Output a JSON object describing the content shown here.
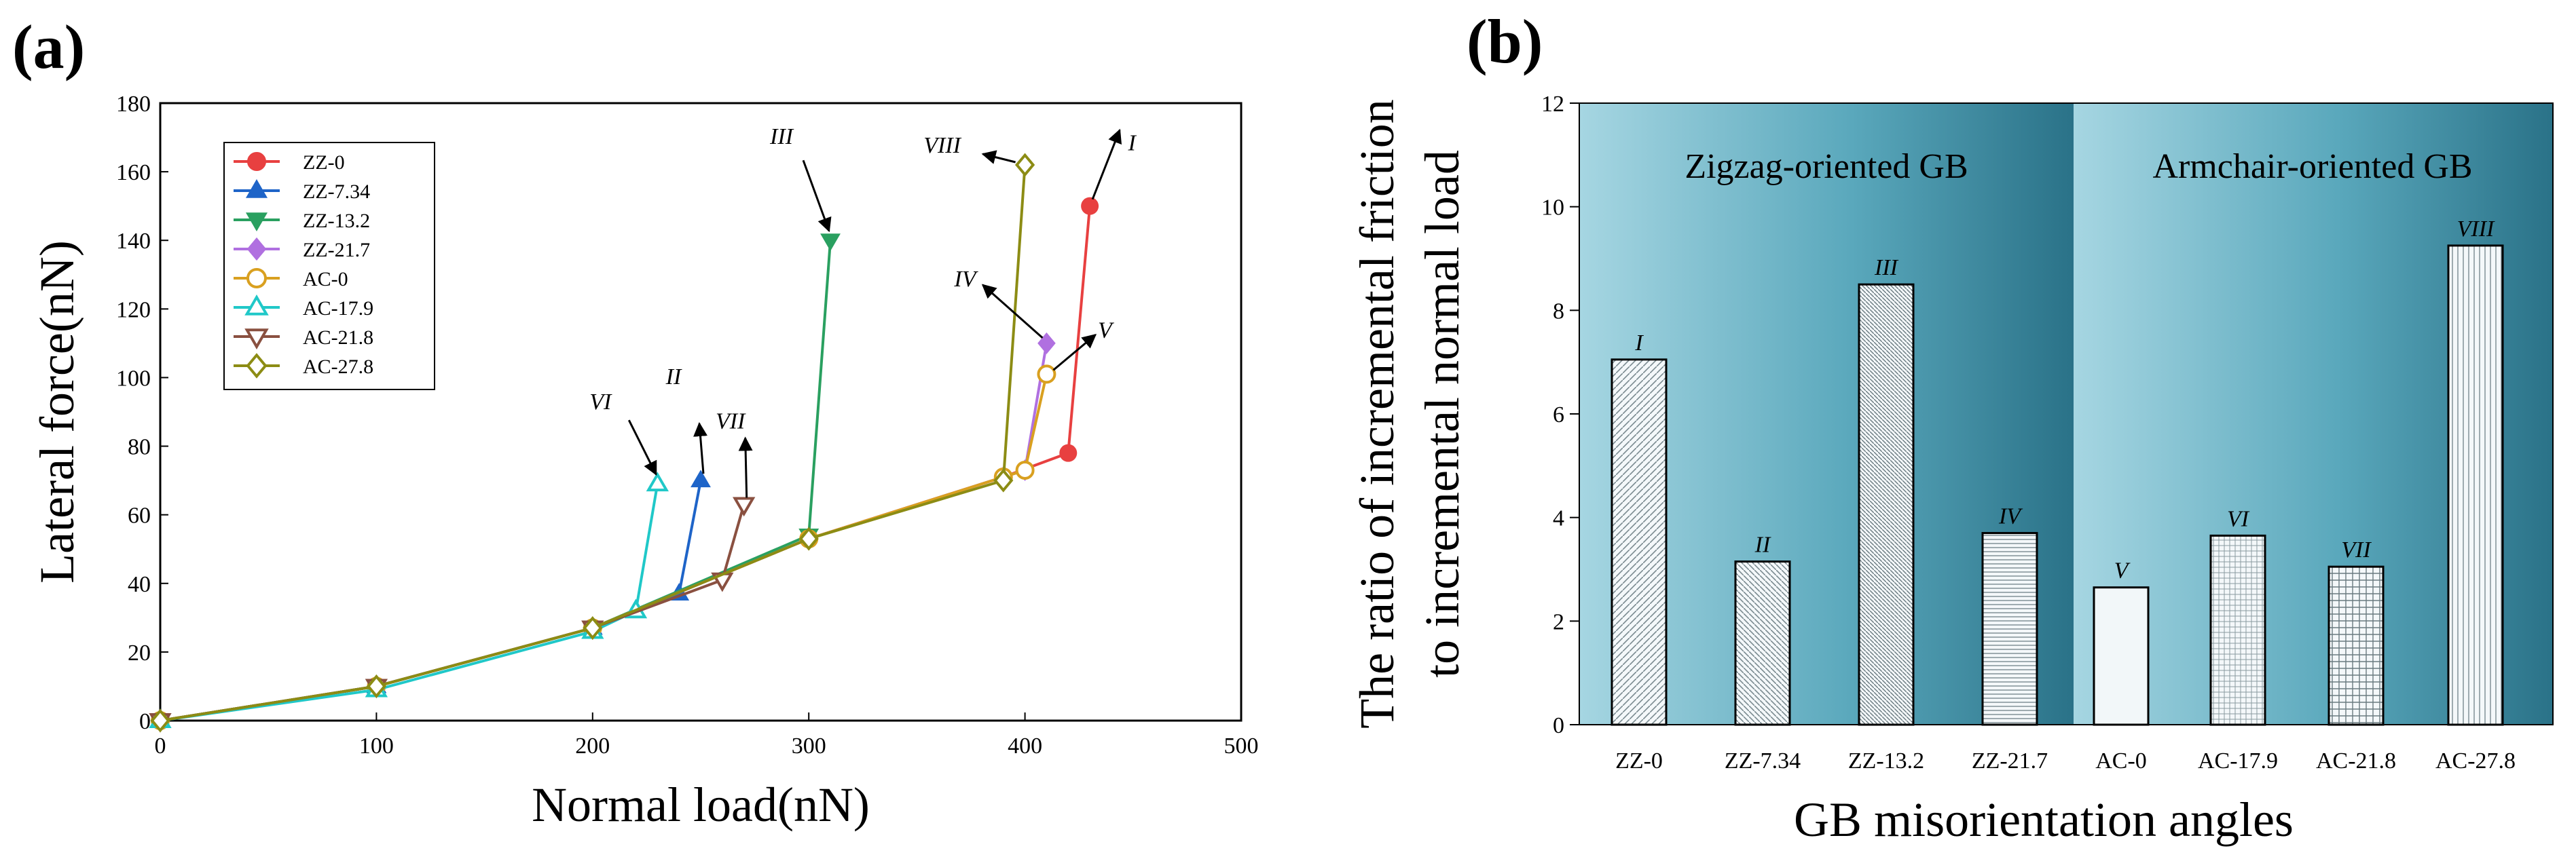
{
  "panels": {
    "a": {
      "label": "(a)"
    },
    "b": {
      "label": "(b)"
    }
  },
  "colors": {
    "ZZ-0": "#e84040",
    "ZZ-7.34": "#1e64c8",
    "ZZ-13.2": "#2aa060",
    "ZZ-21.7": "#b070e0",
    "AC-0": "#d9a020",
    "AC-17.9": "#20c8c8",
    "AC-21.8": "#8a5040",
    "AC-27.8": "#8c8c14"
  },
  "chart_data": [
    {
      "type": "line",
      "panel": "(a)",
      "xlabel": "Normal load(nN)",
      "ylabel": "Lateral force(nN)",
      "xlim": [
        0,
        500
      ],
      "ylim": [
        0,
        180
      ],
      "xticks": [
        "0",
        "100",
        "200",
        "300",
        "400",
        "500"
      ],
      "yticks": [
        "0",
        "20",
        "40",
        "60",
        "80",
        "100",
        "120",
        "140",
        "160",
        "180"
      ],
      "legend_position": "top-left",
      "series": [
        {
          "name": "ZZ-0",
          "marker": "circle-filled",
          "x": [
            0,
            100,
            200,
            300,
            390,
            420,
            430
          ],
          "y": [
            0,
            10,
            27,
            53,
            71,
            78,
            150
          ]
        },
        {
          "name": "ZZ-7.34",
          "marker": "triangle-up-filled",
          "x": [
            0,
            100,
            200,
            240,
            250
          ],
          "y": [
            0,
            10,
            27,
            37,
            70
          ]
        },
        {
          "name": "ZZ-13.2",
          "marker": "triangle-down-filled",
          "x": [
            0,
            100,
            200,
            300,
            310
          ],
          "y": [
            0,
            10,
            27,
            54,
            140
          ]
        },
        {
          "name": "ZZ-21.7",
          "marker": "diamond-filled",
          "x": [
            0,
            100,
            200,
            300,
            390,
            400,
            410
          ],
          "y": [
            0,
            10,
            27,
            53,
            71,
            73,
            110
          ]
        },
        {
          "name": "AC-0",
          "marker": "circle-open",
          "x": [
            0,
            100,
            200,
            300,
            390,
            400,
            410
          ],
          "y": [
            0,
            10,
            27,
            53,
            71,
            73,
            101
          ]
        },
        {
          "name": "AC-17.9",
          "marker": "triangle-up-open",
          "x": [
            0,
            100,
            200,
            220,
            230
          ],
          "y": [
            0,
            9,
            26,
            32,
            69
          ]
        },
        {
          "name": "AC-21.8",
          "marker": "triangle-down-open",
          "x": [
            0,
            100,
            200,
            260,
            270
          ],
          "y": [
            0,
            10,
            27,
            41,
            63
          ]
        },
        {
          "name": "AC-27.8",
          "marker": "diamond-open",
          "x": [
            0,
            100,
            200,
            300,
            390,
            400
          ],
          "y": [
            0,
            10,
            27,
            53,
            70,
            162
          ]
        }
      ],
      "annotations": [
        {
          "text": "I",
          "series": "ZZ-0"
        },
        {
          "text": "II",
          "series": "ZZ-7.34"
        },
        {
          "text": "III",
          "series": "ZZ-13.2"
        },
        {
          "text": "IV",
          "series": "ZZ-21.7"
        },
        {
          "text": "V",
          "series": "AC-0"
        },
        {
          "text": "VI",
          "series": "AC-17.9"
        },
        {
          "text": "VII",
          "series": "AC-21.8"
        },
        {
          "text": "VIII",
          "series": "AC-27.8"
        }
      ]
    },
    {
      "type": "bar",
      "panel": "(b)",
      "xlabel": "GB misorientation angles",
      "ylabel_line1": "The ratio of incremental friction",
      "ylabel_line2": "to incremental normal load",
      "ylim": [
        0,
        12
      ],
      "yticks": [
        "0",
        "2",
        "4",
        "6",
        "8",
        "10",
        "12"
      ],
      "regions": [
        "Zigzag-oriented GB",
        "Armchair-oriented GB"
      ],
      "categories": [
        "ZZ-0",
        "ZZ-7.34",
        "ZZ-13.2",
        "ZZ-21.7",
        "AC-0",
        "AC-17.9",
        "AC-21.8",
        "AC-27.8"
      ],
      "values": [
        7.05,
        3.15,
        8.5,
        3.7,
        2.65,
        3.65,
        3.05,
        9.25
      ],
      "bar_labels": [
        "I",
        "II",
        "III",
        "IV",
        "V",
        "VI",
        "VII",
        "VIII"
      ]
    }
  ]
}
